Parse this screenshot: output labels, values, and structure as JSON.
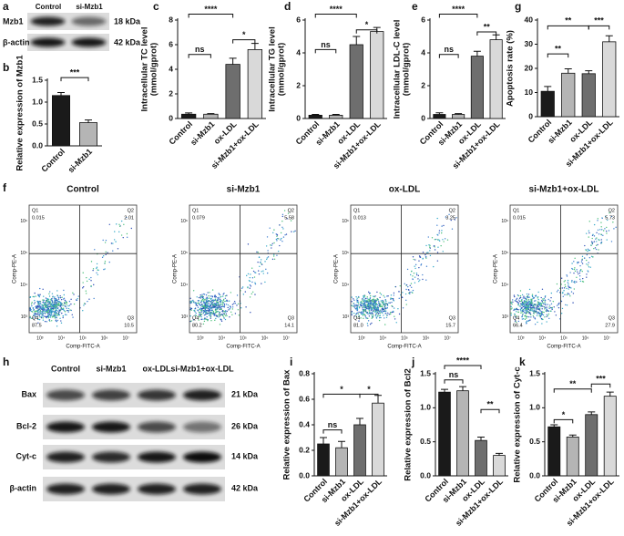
{
  "panel_labels": [
    "a",
    "f",
    "h"
  ],
  "blot_a": {
    "lanes": [
      "Control",
      "si-Mzb1"
    ],
    "rows": [
      {
        "protein": "Mzb1",
        "size": "18 kDa"
      },
      {
        "protein": "β-actin",
        "size": "42 kDa"
      }
    ]
  },
  "flow_f": {
    "y_axis": "Comp-PE-A",
    "x_axis": "Comp-FITC-A",
    "xticks": [
      "10³",
      "10⁴",
      "10⁵",
      "10⁶",
      "10⁷"
    ],
    "yticks": [
      "10³",
      "10⁴",
      "10⁵",
      "10⁶"
    ],
    "plots": [
      {
        "title": "Control",
        "quadrants": [
          {
            "name": "Q1",
            "value": "0.015"
          },
          {
            "name": "Q2",
            "value": "2.01"
          },
          {
            "name": "Q3",
            "value": "10.5"
          },
          {
            "name": "Q4",
            "value": "87.5"
          }
        ]
      },
      {
        "title": "si-Mzb1",
        "quadrants": [
          {
            "name": "Q1",
            "value": "0.079"
          },
          {
            "name": "Q2",
            "value": "5.58"
          },
          {
            "name": "Q3",
            "value": "14.1"
          },
          {
            "name": "Q4",
            "value": "80.2"
          }
        ]
      },
      {
        "title": "ox-LDL",
        "quadrants": [
          {
            "name": "Q1",
            "value": "0.013"
          },
          {
            "name": "Q2",
            "value": "3.25"
          },
          {
            "name": "Q3",
            "value": "15.7"
          },
          {
            "name": "Q4",
            "value": "81.0"
          }
        ]
      },
      {
        "title": "si-Mzb1+ox-LDL",
        "quadrants": [
          {
            "name": "Q1",
            "value": "0.015"
          },
          {
            "name": "Q2",
            "value": "5.73"
          },
          {
            "name": "Q3",
            "value": "27.9"
          },
          {
            "name": "Q4",
            "value": "66.4"
          }
        ]
      }
    ]
  },
  "blot_h": {
    "lanes": [
      "Control",
      "si-Mzb1",
      "ox-LDL",
      "si-Mzb1+ox-LDL"
    ],
    "rows": [
      {
        "protein": "Bax",
        "size": "21 kDa"
      },
      {
        "protein": "Bcl-2",
        "size": "26 kDa"
      },
      {
        "protein": "Cyt-c",
        "size": "14 kDa"
      },
      {
        "protein": "β-actin",
        "size": "42 kDa"
      }
    ]
  },
  "chart_data": [
    {
      "type": "bar",
      "label": "b",
      "ylabel": [
        "Relative expression of Mzb1"
      ],
      "categories": [
        "Control",
        "si-Mzb1"
      ],
      "values": [
        1.15,
        0.53
      ],
      "errors": [
        0.07,
        0.06
      ],
      "colors": [
        "#1a1a1a",
        "#b5b5b5"
      ],
      "ylim": [
        0,
        1.5
      ],
      "yticks": [
        {
          "value": 0,
          "label": "0.0"
        },
        0.5,
        {
          "value": 1,
          "label": "1.0"
        },
        1.5
      ],
      "significance": [
        "***"
      ]
    },
    {
      "type": "bar",
      "label": "c",
      "ylabel": [
        "Intracellular TC level",
        "(mmol/gprot)"
      ],
      "categories": [
        "Control",
        "si-Mzb1",
        "ox-LDL",
        "si-Mzb1+ox-LDL"
      ],
      "values": [
        0.35,
        0.35,
        4.4,
        5.6
      ],
      "errors": [
        0.1,
        0.05,
        0.5,
        0.5
      ],
      "colors": [
        "#1a1a1a",
        "#b5b5b5",
        "#6e6e6e",
        "#d9d9d9"
      ],
      "ylim": [
        0,
        8
      ],
      "yticks": [
        0,
        2,
        4,
        6,
        8
      ],
      "significance": [
        "ns",
        "****",
        "*"
      ]
    },
    {
      "type": "bar",
      "label": "d",
      "ylabel": [
        "Intracellular TG level",
        "(mmol/gprot)"
      ],
      "categories": [
        "Control",
        "si-Mzb1",
        "ox-LDL",
        "si-Mzb1+ox-LDL"
      ],
      "values": [
        0.2,
        0.2,
        4.5,
        5.3
      ],
      "errors": [
        0.05,
        0.05,
        0.5,
        0.25
      ],
      "colors": [
        "#1a1a1a",
        "#b5b5b5",
        "#6e6e6e",
        "#d9d9d9"
      ],
      "ylim": [
        0,
        6
      ],
      "yticks": [
        0,
        2,
        4,
        6
      ],
      "significance": [
        "ns",
        "****",
        "*"
      ]
    },
    {
      "type": "bar",
      "label": "e",
      "ylabel": [
        "Intracellular LDL-C level",
        "(mmol/gprot)"
      ],
      "categories": [
        "Control",
        "si-Mzb1",
        "ox-LDL",
        "si-Mzb1+ox-LDL"
      ],
      "values": [
        0.25,
        0.25,
        3.8,
        4.8
      ],
      "errors": [
        0.1,
        0.05,
        0.3,
        0.3
      ],
      "colors": [
        "#1a1a1a",
        "#b5b5b5",
        "#6e6e6e",
        "#d9d9d9"
      ],
      "ylim": [
        0,
        6
      ],
      "yticks": [
        0,
        2,
        4,
        6
      ],
      "significance": [
        "ns",
        "****",
        "**"
      ]
    },
    {
      "type": "bar",
      "label": "g",
      "ylabel": [
        "Apoptosis rate (%)"
      ],
      "categories": [
        "Control",
        "si-Mzb1",
        "ox-LDL",
        "si-Mzb1+ox-LDL"
      ],
      "values": [
        10.5,
        18,
        17.8,
        31
      ],
      "errors": [
        2,
        1.8,
        1.2,
        2.5
      ],
      "colors": [
        "#1a1a1a",
        "#b5b5b5",
        "#6e6e6e",
        "#d9d9d9"
      ],
      "ylim": [
        0,
        40
      ],
      "yticks": [
        0,
        10,
        20,
        30,
        40
      ],
      "significance": [
        "**",
        "**",
        "***"
      ]
    },
    {
      "type": "bar",
      "label": "i",
      "ylabel": [
        "Relative expression of Bax"
      ],
      "categories": [
        "Control",
        "si-Mzb1",
        "ox-LDL",
        "si-Mzb1+ox-LDL"
      ],
      "values": [
        0.25,
        0.22,
        0.4,
        0.57
      ],
      "errors": [
        0.05,
        0.05,
        0.05,
        0.06
      ],
      "colors": [
        "#1a1a1a",
        "#b5b5b5",
        "#6e6e6e",
        "#d9d9d9"
      ],
      "ylim": [
        0,
        0.8
      ],
      "yticks": [
        {
          "value": 0,
          "label": "0.0"
        },
        0.2,
        0.4,
        0.6,
        0.8
      ],
      "significance": [
        "ns",
        "*",
        "*"
      ]
    },
    {
      "type": "bar",
      "label": "j",
      "ylabel": [
        "Relative expression of Bcl2"
      ],
      "categories": [
        "Control",
        "si-Mzb1",
        "ox-LDL",
        "si-Mzb1+ox-LDL"
      ],
      "values": [
        1.23,
        1.25,
        0.52,
        0.3
      ],
      "errors": [
        0.04,
        0.06,
        0.05,
        0.03
      ],
      "colors": [
        "#1a1a1a",
        "#b5b5b5",
        "#6e6e6e",
        "#d9d9d9"
      ],
      "ylim": [
        0,
        1.5
      ],
      "yticks": [
        {
          "value": 0,
          "label": "0.0"
        },
        0.5,
        {
          "value": 1,
          "label": "1.0"
        },
        1.5
      ],
      "significance": [
        "ns",
        "****",
        "**"
      ]
    },
    {
      "type": "bar",
      "label": "k",
      "ylabel": [
        "Relative expression of Cyt-c"
      ],
      "categories": [
        "Control",
        "si-Mzb1",
        "ox-LDL",
        "si-Mzb1+ox-LDL"
      ],
      "values": [
        0.72,
        0.57,
        0.9,
        1.17
      ],
      "errors": [
        0.03,
        0.03,
        0.04,
        0.06
      ],
      "colors": [
        "#1a1a1a",
        "#b5b5b5",
        "#6e6e6e",
        "#d9d9d9"
      ],
      "ylim": [
        0,
        1.5
      ],
      "yticks": [
        {
          "value": 0,
          "label": "0.0"
        },
        0.5,
        {
          "value": 1,
          "label": "1.0"
        },
        1.5
      ],
      "significance": [
        "*",
        "**",
        "***"
      ]
    }
  ]
}
